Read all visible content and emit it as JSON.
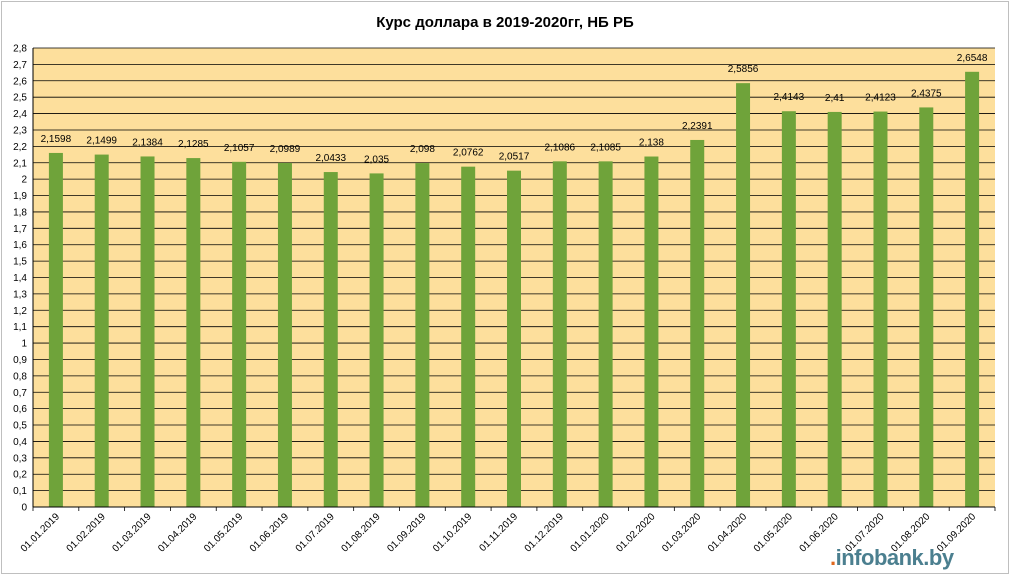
{
  "chart_data": {
    "type": "bar",
    "title": "Курс доллара в 2019-2020гг, НБ РБ",
    "xlabel": "",
    "ylabel": "",
    "ylim": [
      0,
      2.8
    ],
    "ytick_step": 0.1,
    "ytick_labels": [
      "0",
      "0,1",
      "0,2",
      "0,3",
      "0,4",
      "0,5",
      "0,6",
      "0,7",
      "0,8",
      "0,9",
      "1",
      "1,1",
      "1,2",
      "1,3",
      "1,4",
      "1,5",
      "1,6",
      "1,7",
      "1,8",
      "1,9",
      "2",
      "2,1",
      "2,2",
      "2,3",
      "2,4",
      "2,5",
      "2,6",
      "2,7",
      "2,8"
    ],
    "grid": true,
    "legend": "none",
    "categories": [
      "01.01.2019",
      "01.02.2019",
      "01.03.2019",
      "01.04.2019",
      "01.05.2019",
      "01.06.2019",
      "01.07.2019",
      "01.08.2019",
      "01.09.2019",
      "01.10.2019",
      "01.11.2019",
      "01.12.2019",
      "01.01.2020",
      "01.02.2020",
      "01.03.2020",
      "01.04.2020",
      "01.05.2020",
      "01.06.2020",
      "01.07.2020",
      "01.08.2020",
      "01.09.2020"
    ],
    "values": [
      2.1598,
      2.1499,
      2.1384,
      2.1285,
      2.1057,
      2.0989,
      2.0433,
      2.035,
      2.098,
      2.0762,
      2.0517,
      2.1086,
      2.1085,
      2.138,
      2.2391,
      2.5856,
      2.4143,
      2.41,
      2.4123,
      2.4375,
      2.6548
    ],
    "data_labels": [
      "2,1598",
      "2,1499",
      "2,1384",
      "2,1285",
      "2,1057",
      "2,0989",
      "2,0433",
      "2,035",
      "2,098",
      "2,0762",
      "2,0517",
      "2,1086",
      "2,1085",
      "2,138",
      "2,2391",
      "2,5856",
      "2,4143",
      "2,41",
      "2,4123",
      "2,4375",
      "2,6548"
    ],
    "colors": {
      "bar": "#6fa33a",
      "plot_bg": "#fddf9c",
      "grid": "#000000"
    }
  },
  "watermark": {
    "prefix": ".",
    "text": "infobank.by"
  }
}
